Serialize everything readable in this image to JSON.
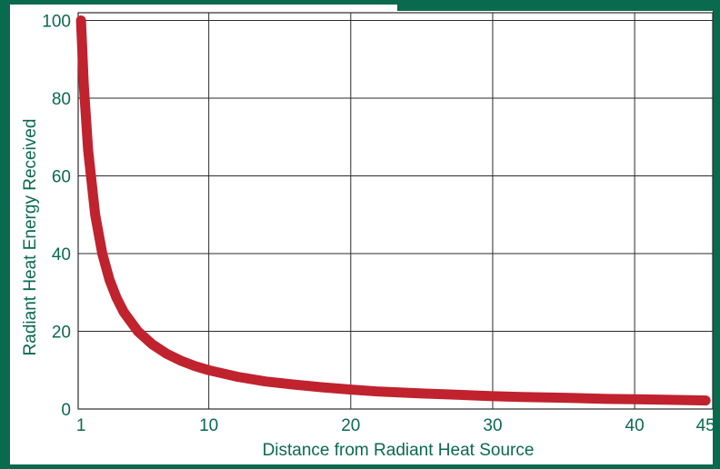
{
  "colors": {
    "frame": "#0a6a4e",
    "label_text": "#0a6a4e",
    "grid": "#2b2b2b",
    "curve": "#c0222e",
    "background": "#ffffff"
  },
  "chart_data": {
    "type": "line",
    "title": "",
    "xlabel": "Distance from Radiant Heat Source",
    "ylabel": "Radiant Heat Energy Received",
    "xlim": [
      0.8,
      45.5
    ],
    "ylim": [
      0,
      102
    ],
    "grid": true,
    "x_ticks": [
      1,
      10,
      20,
      30,
      40,
      45
    ],
    "x_tick_labels": [
      "1",
      "10",
      "20",
      "30",
      "40",
      "45"
    ],
    "x_grid": [
      10,
      20,
      30,
      40
    ],
    "y_ticks": [
      0,
      20,
      40,
      60,
      80,
      100
    ],
    "y_tick_labels": [
      "0",
      "20",
      "40",
      "60",
      "80",
      "100"
    ],
    "series": [
      {
        "x": [
          1,
          1.2,
          1.5,
          2,
          2.5,
          3,
          3.5,
          4,
          5,
          6,
          7,
          8,
          9,
          10,
          12,
          14,
          16,
          18,
          20,
          22,
          25,
          28,
          30,
          32,
          35,
          38,
          40,
          42,
          45
        ],
        "y": [
          100,
          83.3,
          66.7,
          50,
          40,
          33.3,
          28.6,
          25,
          20,
          16.7,
          14.3,
          12.5,
          11.1,
          10,
          8.3,
          7.1,
          6.3,
          5.6,
          5,
          4.5,
          4,
          3.6,
          3.3,
          3.1,
          2.9,
          2.6,
          2.5,
          2.4,
          2.2
        ]
      }
    ]
  }
}
